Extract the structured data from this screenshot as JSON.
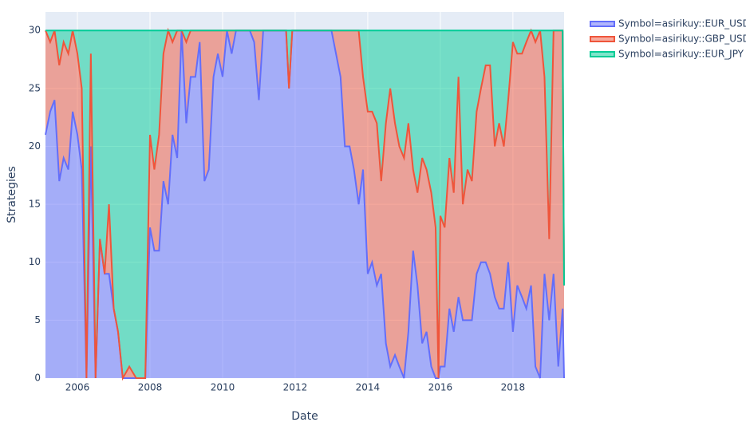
{
  "chart_data": {
    "type": "stacked-area",
    "x_label": "Date",
    "y_label": "Strategies",
    "x": [
      2005.12,
      2005.25,
      2005.37,
      2005.5,
      2005.62,
      2005.75,
      2005.87,
      2006.0,
      2006.12,
      2006.25,
      2006.37,
      2006.5,
      2006.62,
      2006.75,
      2006.87,
      2007.0,
      2007.12,
      2007.25,
      2007.43,
      2007.62,
      2007.87,
      2008.0,
      2008.12,
      2008.25,
      2008.37,
      2008.5,
      2008.62,
      2008.75,
      2008.87,
      2009.0,
      2009.12,
      2009.25,
      2009.37,
      2009.5,
      2009.62,
      2009.75,
      2009.87,
      2010.0,
      2010.12,
      2010.25,
      2010.37,
      2010.75,
      2010.87,
      2011.0,
      2011.12,
      2011.75,
      2011.83,
      2011.92,
      2013.0,
      2013.25,
      2013.37,
      2013.5,
      2013.62,
      2013.75,
      2013.87,
      2014.0,
      2014.12,
      2014.25,
      2014.37,
      2014.5,
      2014.62,
      2014.75,
      2014.87,
      2015.0,
      2015.12,
      2015.25,
      2015.37,
      2015.5,
      2015.62,
      2015.75,
      2015.87,
      2015.95,
      2016.0,
      2016.12,
      2016.25,
      2016.37,
      2016.5,
      2016.62,
      2016.75,
      2016.87,
      2017.0,
      2017.12,
      2017.25,
      2017.37,
      2017.5,
      2017.62,
      2017.75,
      2017.87,
      2018.0,
      2018.12,
      2018.25,
      2018.37,
      2018.5,
      2018.62,
      2018.75,
      2018.87,
      2019.0,
      2019.12,
      2019.25,
      2019.37,
      2019.41
    ],
    "series": [
      {
        "name": "Symbol=asirikuy::EUR_USD",
        "color": "#636efa",
        "values": [
          21,
          23,
          24,
          17,
          19,
          18,
          23,
          21,
          18,
          0,
          20,
          0,
          12,
          9,
          9,
          6,
          4,
          0,
          0,
          0,
          0,
          13,
          11,
          11,
          17,
          15,
          21,
          19,
          30,
          22,
          26,
          26,
          29,
          17,
          18,
          26,
          28,
          26,
          30,
          28,
          30,
          30,
          29,
          24,
          30,
          30,
          25,
          30,
          30,
          26,
          20,
          20,
          18,
          15,
          18,
          9,
          10,
          8,
          9,
          3,
          1,
          2,
          1,
          0,
          4,
          11,
          8,
          3,
          4,
          1,
          0,
          0,
          1,
          1,
          6,
          4,
          7,
          5,
          5,
          5,
          9,
          10,
          10,
          9,
          7,
          6,
          6,
          10,
          4,
          8,
          7,
          6,
          8,
          1,
          0,
          9,
          5,
          9,
          1,
          6,
          0
        ]
      },
      {
        "name": "Symbol=asirikuy::GBP_USD",
        "color": "#ef553b",
        "values": [
          9,
          6,
          6,
          10,
          10,
          10,
          7,
          7,
          7,
          0,
          8,
          0,
          0,
          0,
          6,
          0,
          0,
          0,
          1,
          0,
          0,
          8,
          7,
          10,
          11,
          15,
          8,
          11,
          0,
          7,
          4,
          4,
          1,
          13,
          12,
          4,
          2,
          4,
          0,
          2,
          0,
          0,
          1,
          6,
          0,
          0,
          0,
          0,
          0,
          4,
          10,
          10,
          12,
          15,
          8,
          14,
          13,
          14,
          8,
          19,
          24,
          20,
          19,
          19,
          18,
          7,
          8,
          16,
          14,
          15,
          13,
          0,
          13,
          12,
          13,
          12,
          19,
          10,
          13,
          12,
          14,
          15,
          17,
          18,
          13,
          16,
          14,
          14,
          25,
          20,
          21,
          23,
          22,
          28,
          30,
          17,
          7,
          21,
          29,
          24,
          8
        ]
      },
      {
        "name": "Symbol=asirikuy::EUR_JPY",
        "color": "#00cc96",
        "values": [
          0,
          1,
          0,
          3,
          1,
          2,
          0,
          2,
          5,
          30,
          2,
          30,
          18,
          21,
          15,
          24,
          26,
          30,
          29,
          30,
          30,
          9,
          12,
          9,
          2,
          0,
          1,
          0,
          0,
          1,
          0,
          0,
          0,
          0,
          0,
          0,
          0,
          0,
          0,
          0,
          0,
          0,
          0,
          0,
          0,
          0,
          5,
          0,
          0,
          0,
          0,
          0,
          0,
          0,
          4,
          7,
          7,
          8,
          13,
          8,
          5,
          8,
          10,
          11,
          8,
          12,
          14,
          11,
          12,
          14,
          17,
          30,
          16,
          17,
          11,
          14,
          4,
          15,
          12,
          13,
          7,
          5,
          3,
          3,
          10,
          8,
          10,
          6,
          1,
          2,
          2,
          1,
          0,
          1,
          0,
          4,
          18,
          0,
          0,
          0,
          0
        ]
      }
    ],
    "xlim": [
      2005.12,
      2019.41
    ],
    "xticks": [
      2006,
      2008,
      2010,
      2012,
      2014,
      2016,
      2018
    ],
    "ylim": [
      0,
      31.6
    ],
    "yticks": [
      0,
      5,
      10,
      15,
      20,
      25,
      30
    ],
    "grid": true,
    "legend": "outside-right"
  }
}
